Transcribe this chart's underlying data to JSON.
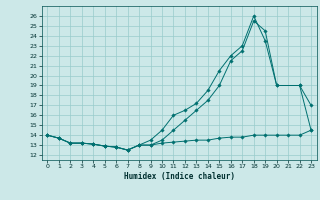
{
  "xlabel": "Humidex (Indice chaleur)",
  "background_color": "#cce8e8",
  "grid_color": "#99cccc",
  "line_color": "#007070",
  "x_ticks": [
    0,
    1,
    2,
    3,
    4,
    5,
    6,
    7,
    8,
    9,
    10,
    11,
    12,
    13,
    14,
    15,
    16,
    17,
    18,
    19,
    20,
    21,
    22,
    23
  ],
  "y_ticks": [
    12,
    13,
    14,
    15,
    16,
    17,
    18,
    19,
    20,
    21,
    22,
    23,
    24,
    25,
    26
  ],
  "ylim": [
    11.5,
    27
  ],
  "xlim": [
    -0.5,
    23.5
  ],
  "series1_x": [
    0,
    1,
    2,
    3,
    4,
    5,
    6,
    7,
    8,
    9,
    10,
    11,
    12,
    13,
    14,
    15,
    16,
    17,
    18,
    19,
    20,
    21,
    22,
    23
  ],
  "series1_y": [
    14.0,
    13.7,
    13.2,
    13.2,
    13.1,
    12.9,
    12.8,
    12.5,
    13.0,
    13.0,
    13.2,
    13.3,
    13.4,
    13.5,
    13.5,
    13.7,
    13.8,
    13.8,
    14.0,
    14.0,
    14.0,
    14.0,
    14.0,
    14.5
  ],
  "series2_x": [
    0,
    1,
    2,
    3,
    4,
    5,
    6,
    7,
    8,
    9,
    10,
    11,
    12,
    13,
    14,
    15,
    16,
    17,
    18,
    19,
    20,
    22,
    23
  ],
  "series2_y": [
    14.0,
    13.7,
    13.2,
    13.2,
    13.1,
    12.9,
    12.8,
    12.5,
    13.0,
    13.5,
    14.5,
    16.0,
    16.5,
    17.2,
    18.5,
    20.5,
    22.0,
    23.0,
    26.0,
    23.5,
    19.0,
    19.0,
    17.0
  ],
  "series3_x": [
    0,
    1,
    2,
    3,
    4,
    5,
    6,
    7,
    8,
    9,
    10,
    11,
    12,
    13,
    14,
    15,
    16,
    17,
    18,
    19,
    20,
    22,
    23
  ],
  "series3_y": [
    14.0,
    13.7,
    13.2,
    13.2,
    13.1,
    12.9,
    12.8,
    12.5,
    13.0,
    13.0,
    13.5,
    14.5,
    15.5,
    16.5,
    17.5,
    19.0,
    21.5,
    22.5,
    25.5,
    24.5,
    19.0,
    19.0,
    14.5
  ]
}
